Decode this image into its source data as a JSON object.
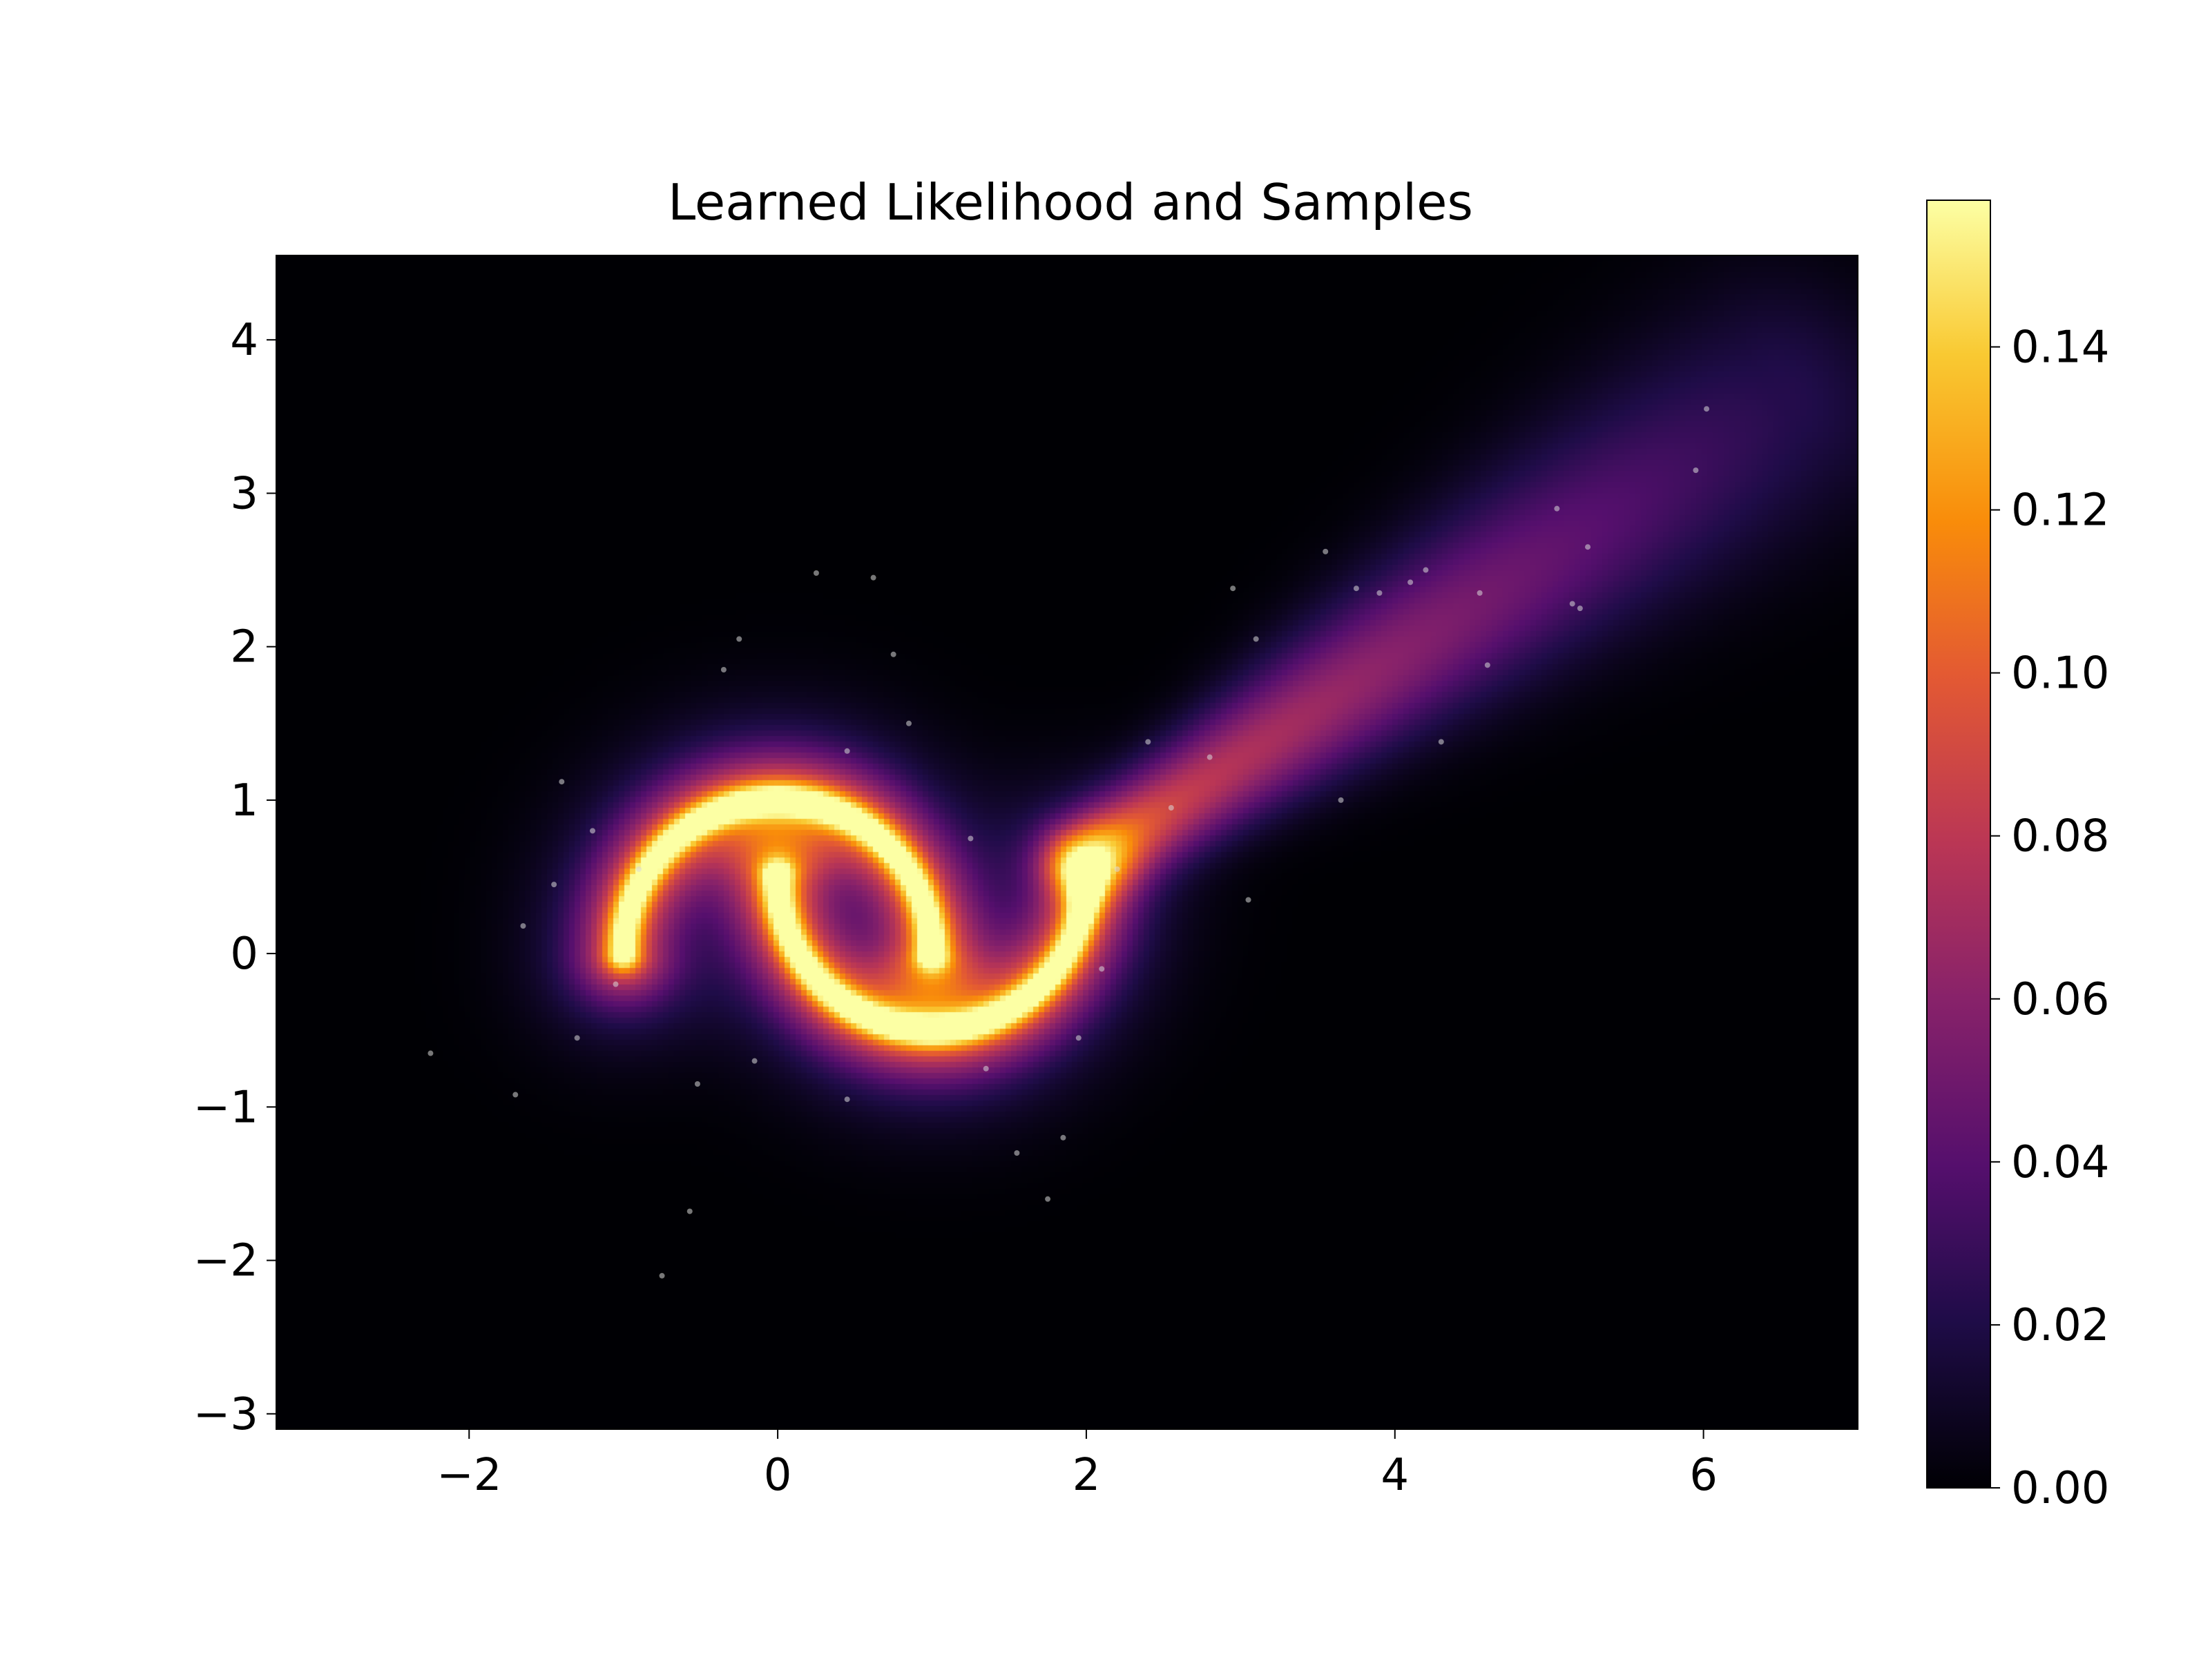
{
  "chart_data": {
    "type": "heatmap",
    "title": "Learned Likelihood and Samples",
    "xlabel": "",
    "ylabel": "",
    "xlim": [
      -3.25,
      7.0
    ],
    "ylim": [
      -3.1,
      4.55
    ],
    "x_ticks": [
      -2,
      0,
      2,
      4,
      6
    ],
    "x_tick_labels": [
      "−2",
      "0",
      "2",
      "4",
      "6"
    ],
    "y_ticks": [
      -3,
      -2,
      -1,
      0,
      1,
      2,
      3,
      4
    ],
    "y_tick_labels": [
      "−3",
      "−2",
      "−1",
      "0",
      "1",
      "2",
      "3",
      "4"
    ],
    "colormap": "inferno",
    "colorbar": {
      "range": [
        0.0,
        0.158
      ],
      "ticks": [
        0.0,
        0.02,
        0.04,
        0.06,
        0.08,
        0.1,
        0.12,
        0.14
      ],
      "tick_labels": [
        "0.00",
        "0.02",
        "0.04",
        "0.06",
        "0.08",
        "0.10",
        "0.12",
        "0.14"
      ]
    },
    "density_structure": {
      "description_of_shape": "two interleaved moons with a diffuse tail toward upper right",
      "upper_moon": {
        "center": [
          0.0,
          0.0
        ],
        "radius": 1.0,
        "angle_range_deg": [
          0,
          180
        ],
        "peak": 0.155
      },
      "lower_moon": {
        "center": [
          1.0,
          0.5
        ],
        "radius": 1.0,
        "angle_range_deg": [
          180,
          360
        ],
        "peak": 0.155
      },
      "tail": {
        "from": [
          2.0,
          0.6
        ],
        "to": [
          6.5,
          3.6
        ],
        "peak": 0.09
      }
    },
    "samples": {
      "color": "#d9d9d9",
      "opacity": 0.55,
      "points": [
        [
          -2.25,
          -0.65
        ],
        [
          -1.7,
          -0.92
        ],
        [
          -1.65,
          0.18
        ],
        [
          -1.45,
          0.45
        ],
        [
          -1.4,
          1.12
        ],
        [
          -1.3,
          -0.55
        ],
        [
          -1.2,
          0.8
        ],
        [
          -0.75,
          -2.1
        ],
        [
          -0.57,
          -1.68
        ],
        [
          -0.52,
          -0.85
        ],
        [
          -0.35,
          1.85
        ],
        [
          -0.25,
          2.05
        ],
        [
          0.25,
          2.48
        ],
        [
          0.62,
          2.45
        ],
        [
          0.75,
          1.95
        ],
        [
          0.85,
          1.5
        ],
        [
          1.55,
          -1.3
        ],
        [
          1.75,
          -1.6
        ],
        [
          1.85,
          -1.2
        ],
        [
          2.4,
          1.38
        ],
        [
          2.8,
          1.28
        ],
        [
          3.05,
          0.35
        ],
        [
          2.95,
          2.38
        ],
        [
          3.1,
          2.05
        ],
        [
          3.55,
          2.62
        ],
        [
          3.65,
          1.0
        ],
        [
          3.75,
          2.38
        ],
        [
          3.9,
          2.35
        ],
        [
          4.1,
          2.42
        ],
        [
          4.2,
          2.5
        ],
        [
          4.3,
          1.38
        ],
        [
          4.55,
          2.35
        ],
        [
          4.6,
          1.88
        ],
        [
          5.05,
          2.9
        ],
        [
          5.15,
          2.28
        ],
        [
          5.2,
          2.25
        ],
        [
          5.25,
          2.65
        ],
        [
          5.95,
          3.15
        ],
        [
          6.02,
          3.55
        ],
        [
          2.55,
          0.95
        ],
        [
          2.2,
          0.55
        ],
        [
          2.1,
          -0.1
        ],
        [
          1.95,
          -0.55
        ],
        [
          1.35,
          -0.75
        ],
        [
          0.45,
          -0.95
        ],
        [
          -0.15,
          -0.7
        ],
        [
          -0.9,
          0.55
        ],
        [
          -1.05,
          -0.2
        ],
        [
          0.45,
          1.32
        ],
        [
          1.25,
          0.75
        ]
      ]
    }
  }
}
